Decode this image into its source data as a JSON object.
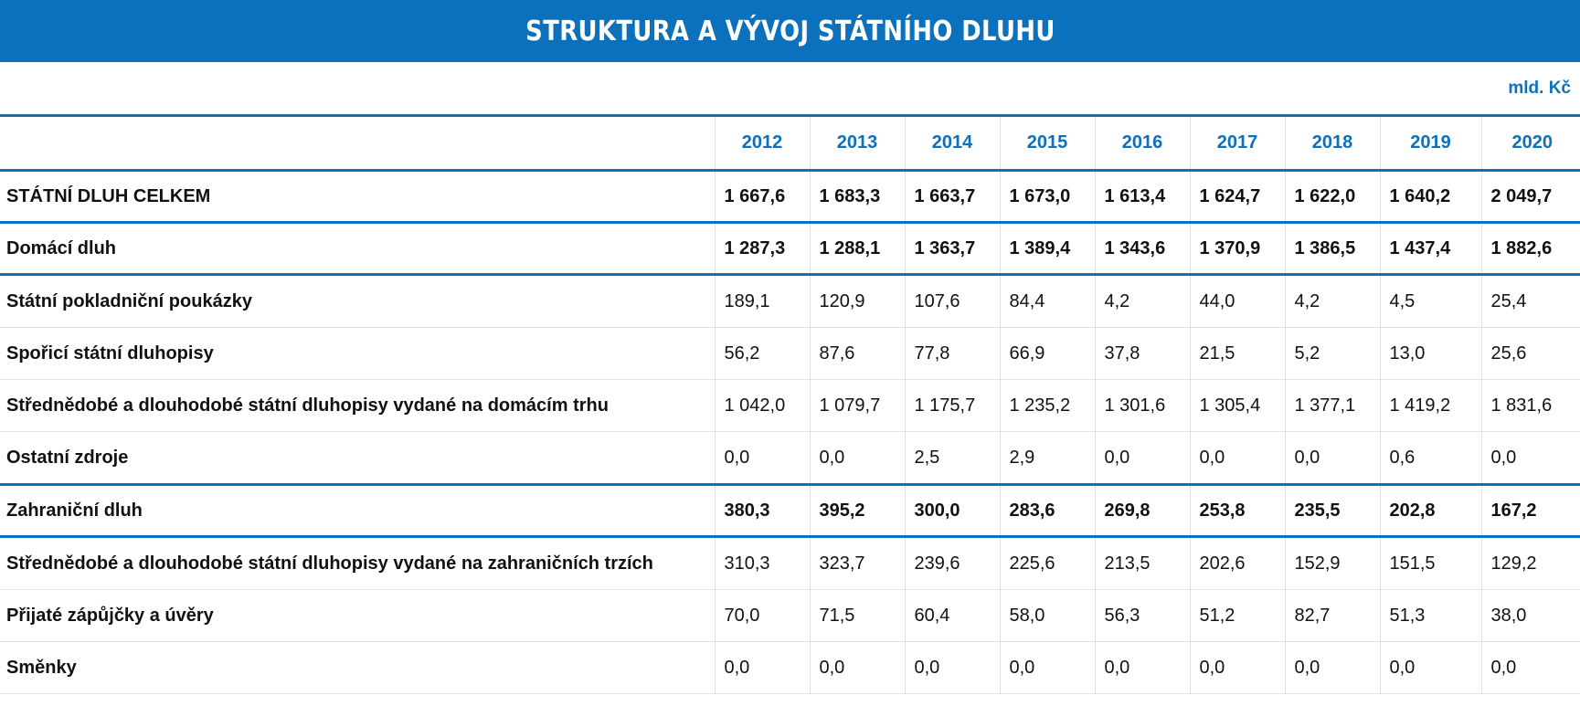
{
  "title": "STRUKTURA A VÝVOJ STÁTNÍHO DLUHU",
  "unit": "mld. Kč",
  "years": [
    "2012",
    "2013",
    "2014",
    "2015",
    "2016",
    "2017",
    "2018",
    "2019",
    "2020"
  ],
  "rows": [
    {
      "label": "STÁTNÍ DLUH CELKEM",
      "values": [
        "1 667,6",
        "1 683,3",
        "1 663,7",
        "1 673,0",
        "1 613,4",
        "1 624,7",
        "1 622,0",
        "1 640,2",
        "2 049,7"
      ]
    },
    {
      "label": "Domácí dluh",
      "values": [
        "1 287,3",
        "1 288,1",
        "1 363,7",
        "1 389,4",
        "1 343,6",
        "1 370,9",
        "1 386,5",
        "1 437,4",
        "1 882,6"
      ]
    },
    {
      "label": "Státní pokladniční poukázky",
      "values": [
        "189,1",
        "120,9",
        "107,6",
        "84,4",
        "4,2",
        "44,0",
        "4,2",
        "4,5",
        "25,4"
      ]
    },
    {
      "label": "Spořicí státní dluhopisy",
      "values": [
        "56,2",
        "87,6",
        "77,8",
        "66,9",
        "37,8",
        "21,5",
        "5,2",
        "13,0",
        "25,6"
      ]
    },
    {
      "label": "Střednědobé a dlouhodobé státní dluhopisy vydané na domácím trhu",
      "values": [
        "1 042,0",
        "1 079,7",
        "1 175,7",
        "1 235,2",
        "1 301,6",
        "1 305,4",
        "1 377,1",
        "1 419,2",
        "1 831,6"
      ]
    },
    {
      "label": "Ostatní zdroje",
      "values": [
        "0,0",
        "0,0",
        "2,5",
        "2,9",
        "0,0",
        "0,0",
        "0,0",
        "0,6",
        "0,0"
      ]
    },
    {
      "label": "Zahraniční dluh",
      "values": [
        "380,3",
        "395,2",
        "300,0",
        "283,6",
        "269,8",
        "253,8",
        "235,5",
        "202,8",
        "167,2"
      ]
    },
    {
      "label": "Střednědobé a dlouhodobé státní dluhopisy vydané na zahraničních trzích",
      "values": [
        "310,3",
        "323,7",
        "239,6",
        "225,6",
        "213,5",
        "202,6",
        "152,9",
        "151,5",
        "129,2"
      ]
    },
    {
      "label": "Přijaté zápůjčky a úvěry",
      "values": [
        "70,0",
        "71,5",
        "60,4",
        "58,0",
        "56,3",
        "51,2",
        "82,7",
        "51,3",
        "38,0"
      ]
    },
    {
      "label": "Směnky",
      "values": [
        "0,0",
        "0,0",
        "0,0",
        "0,0",
        "0,0",
        "0,0",
        "0,0",
        "0,0",
        "0,0"
      ]
    }
  ]
}
